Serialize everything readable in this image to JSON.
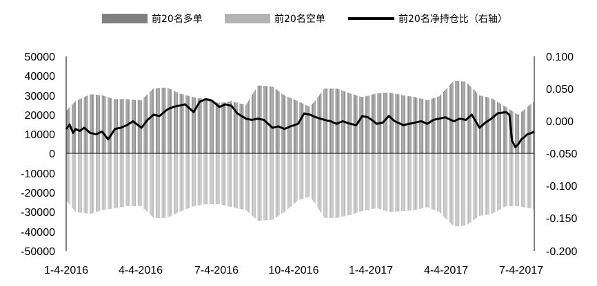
{
  "chart_data": {
    "type": "bar",
    "legend": {
      "placement": "top",
      "items": [
        "前20名多单",
        "前20名空单",
        "前20名净持仓比（右轴）"
      ]
    },
    "colors": {
      "long": "#808080",
      "short": "#b3b3b3",
      "net": "#000000",
      "axis": "#000000"
    },
    "y_left": {
      "min": -50000,
      "max": 50000,
      "ticks": [
        50000,
        40000,
        30000,
        20000,
        10000,
        0,
        -10000,
        -20000,
        -30000,
        -40000,
        -50000
      ]
    },
    "y_right": {
      "min": -0.2,
      "max": 0.1,
      "ticks": [
        "0.100",
        "0.050",
        "0.000",
        "-0.050",
        "-0.100",
        "-0.150",
        "-0.200"
      ]
    },
    "x_ticks": [
      "1-4-2016",
      "4-4-2016",
      "7-4-2016",
      "10-4-2016",
      "1-4-2017",
      "4-4-2017",
      "7-4-2017"
    ],
    "x_start": "2016-01-04",
    "x_end": "2017-07-04",
    "long_series": {
      "name": "前20名多单",
      "dates": [
        "2016-01-04",
        "2016-01-15",
        "2016-02-01",
        "2016-02-15",
        "2016-03-01",
        "2016-03-15",
        "2016-04-01",
        "2016-04-15",
        "2016-05-01",
        "2016-05-15",
        "2016-06-01",
        "2016-06-15",
        "2016-07-01",
        "2016-07-15",
        "2016-08-01",
        "2016-08-15",
        "2016-09-01",
        "2016-09-15",
        "2016-10-01",
        "2016-10-15",
        "2016-11-01",
        "2016-11-15",
        "2016-12-01",
        "2016-12-15",
        "2017-01-01",
        "2017-01-15",
        "2017-02-01",
        "2017-02-15",
        "2017-03-01",
        "2017-03-15",
        "2017-04-01",
        "2017-04-15",
        "2017-05-01",
        "2017-05-15",
        "2017-06-01",
        "2017-06-15",
        "2017-07-04"
      ],
      "values": [
        22000,
        27000,
        30500,
        30000,
        28000,
        28000,
        27500,
        33500,
        34000,
        31000,
        29000,
        28000,
        26000,
        27000,
        25000,
        35000,
        34500,
        30000,
        27000,
        24000,
        33500,
        33500,
        31000,
        29000,
        31000,
        31500,
        30000,
        29000,
        27500,
        29500,
        37500,
        37000,
        30000,
        28500,
        24000,
        20000,
        27000
      ]
    },
    "short_series": {
      "name": "前20名空单",
      "dates": [
        "2016-01-04",
        "2016-01-15",
        "2016-02-01",
        "2016-02-15",
        "2016-03-01",
        "2016-03-15",
        "2016-04-01",
        "2016-04-15",
        "2016-05-01",
        "2016-05-15",
        "2016-06-01",
        "2016-06-15",
        "2016-07-01",
        "2016-07-15",
        "2016-08-01",
        "2016-08-15",
        "2016-09-01",
        "2016-09-15",
        "2016-10-01",
        "2016-10-15",
        "2016-11-01",
        "2016-11-15",
        "2016-12-01",
        "2016-12-15",
        "2017-01-01",
        "2017-01-15",
        "2017-02-01",
        "2017-02-15",
        "2017-03-01",
        "2017-03-15",
        "2017-04-01",
        "2017-04-15",
        "2017-05-01",
        "2017-05-15",
        "2017-06-01",
        "2017-06-15",
        "2017-07-04"
      ],
      "values": [
        -24000,
        -30000,
        -31000,
        -29000,
        -28000,
        -27000,
        -27000,
        -33000,
        -33000,
        -30000,
        -27000,
        -26000,
        -26000,
        -27500,
        -29000,
        -34500,
        -34000,
        -30000,
        -24000,
        -22000,
        -33000,
        -33000,
        -31500,
        -29500,
        -28000,
        -30000,
        -29500,
        -29000,
        -27500,
        -30000,
        -37500,
        -37000,
        -32000,
        -31000,
        -27000,
        -27000,
        -28500
      ]
    },
    "net_series": {
      "name": "前20名净持仓比（右轴）",
      "dates": [
        "2016-01-04",
        "2016-01-08",
        "2016-01-12",
        "2016-01-15",
        "2016-01-20",
        "2016-01-25",
        "2016-02-01",
        "2016-02-08",
        "2016-02-15",
        "2016-02-22",
        "2016-03-01",
        "2016-03-08",
        "2016-03-15",
        "2016-03-22",
        "2016-04-01",
        "2016-04-08",
        "2016-04-15",
        "2016-04-22",
        "2016-05-01",
        "2016-05-08",
        "2016-05-15",
        "2016-05-22",
        "2016-06-01",
        "2016-06-08",
        "2016-06-15",
        "2016-06-22",
        "2016-07-01",
        "2016-07-08",
        "2016-07-15",
        "2016-07-22",
        "2016-08-01",
        "2016-08-08",
        "2016-08-15",
        "2016-08-22",
        "2016-09-01",
        "2016-09-08",
        "2016-09-15",
        "2016-09-22",
        "2016-10-01",
        "2016-10-08",
        "2016-10-15",
        "2016-10-22",
        "2016-11-01",
        "2016-11-08",
        "2016-11-15",
        "2016-11-22",
        "2016-12-01",
        "2016-12-08",
        "2016-12-15",
        "2016-12-22",
        "2017-01-01",
        "2017-01-08",
        "2017-01-15",
        "2017-01-22",
        "2017-02-01",
        "2017-02-08",
        "2017-02-15",
        "2017-02-22",
        "2017-03-01",
        "2017-03-08",
        "2017-03-15",
        "2017-03-22",
        "2017-04-01",
        "2017-04-08",
        "2017-04-15",
        "2017-04-22",
        "2017-05-01",
        "2017-05-08",
        "2017-05-15",
        "2017-05-22",
        "2017-06-01",
        "2017-06-05",
        "2017-06-08",
        "2017-06-12",
        "2017-06-15",
        "2017-06-19",
        "2017-06-22",
        "2017-06-26",
        "2017-07-01",
        "2017-07-04"
      ],
      "values": [
        -0.012,
        -0.005,
        -0.018,
        -0.012,
        -0.015,
        -0.01,
        -0.018,
        -0.02,
        -0.016,
        -0.028,
        -0.012,
        -0.01,
        -0.006,
        0.0,
        -0.01,
        0.002,
        0.01,
        0.008,
        0.018,
        0.022,
        0.024,
        0.026,
        0.014,
        0.03,
        0.034,
        0.032,
        0.022,
        0.026,
        0.024,
        0.012,
        0.004,
        0.002,
        0.004,
        0.002,
        -0.01,
        -0.008,
        -0.012,
        -0.008,
        -0.004,
        0.012,
        0.01,
        0.006,
        0.002,
        0.0,
        -0.004,
        0.0,
        -0.004,
        -0.006,
        0.008,
        0.006,
        -0.004,
        -0.002,
        0.008,
        0.0,
        -0.006,
        -0.004,
        -0.002,
        0.0,
        -0.004,
        0.002,
        0.004,
        0.006,
        0.0,
        0.004,
        0.002,
        0.01,
        -0.01,
        -0.002,
        0.004,
        0.012,
        0.014,
        0.01,
        -0.03,
        -0.04,
        -0.036,
        -0.028,
        -0.025,
        -0.02,
        -0.018,
        -0.016
      ]
    }
  }
}
